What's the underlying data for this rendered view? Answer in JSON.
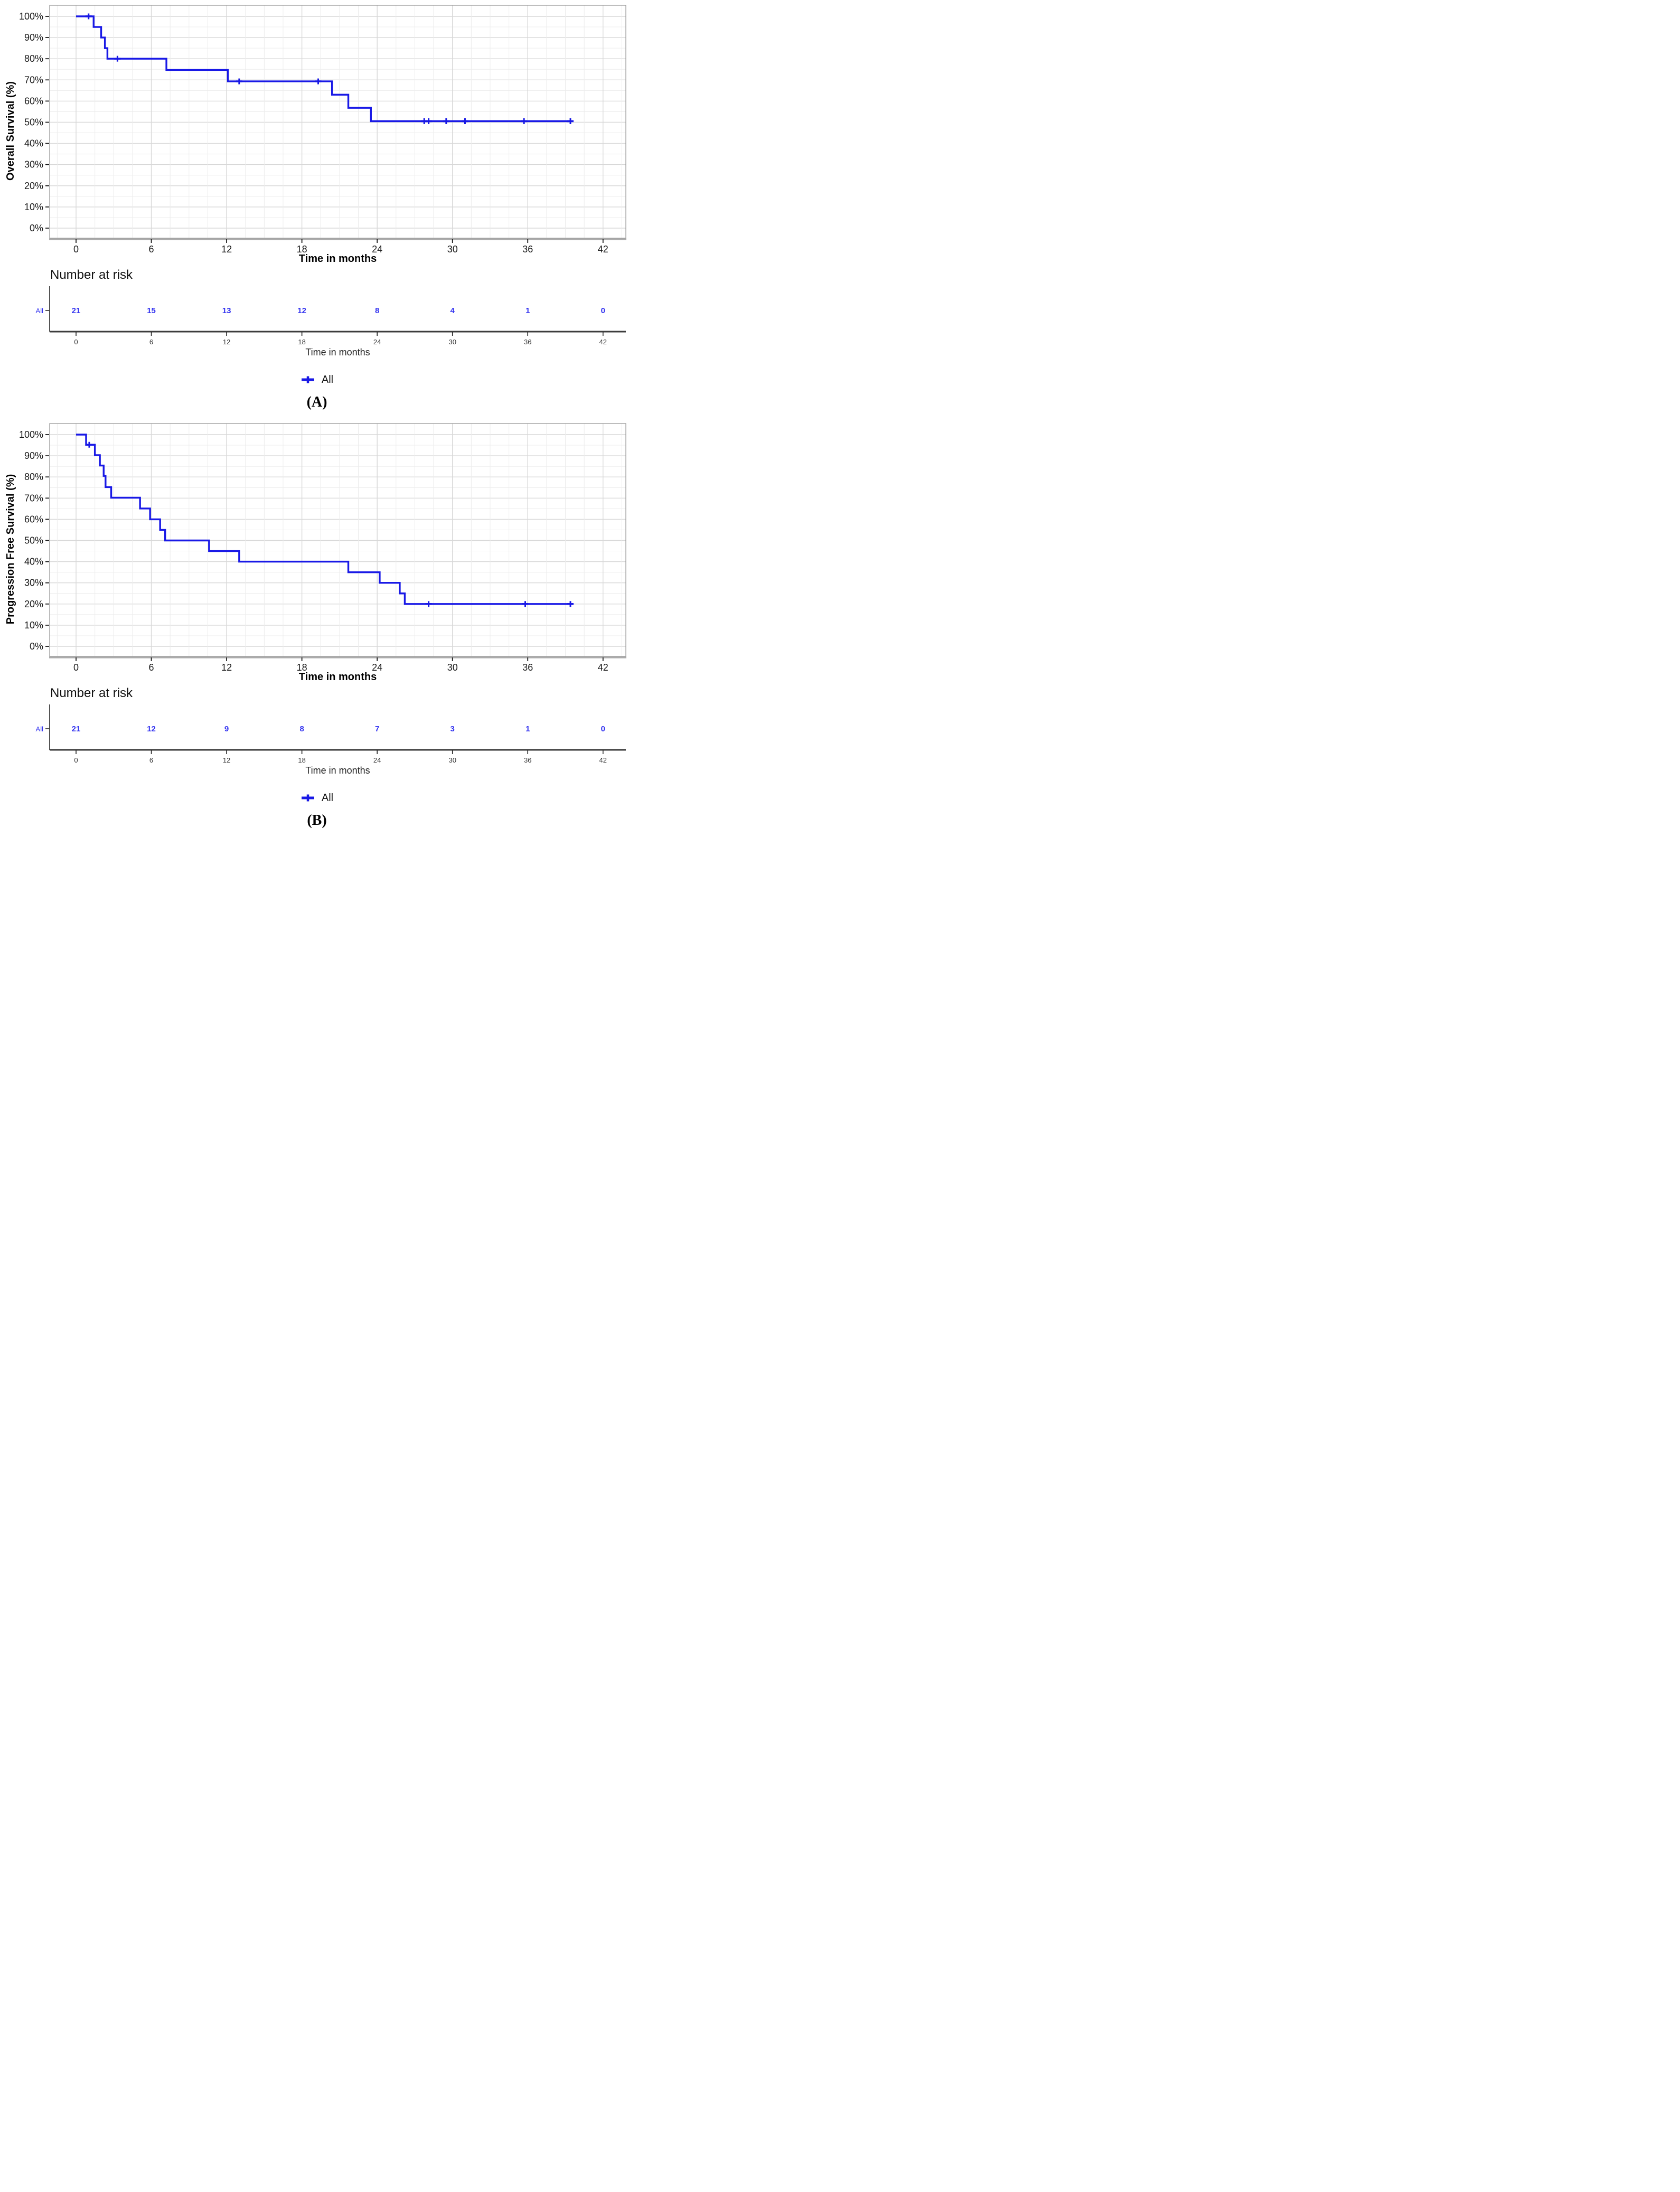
{
  "page": {
    "background": "#ffffff",
    "accent_blue": "#1919e6",
    "risk_number_blue": "#3333f0",
    "grid_major_color": "#d8d8d8",
    "grid_minor_color": "#ececec"
  },
  "chart_data": [
    {
      "type": "line",
      "km_style": "step",
      "panel_label": "(A)",
      "xlabel": "Time in months",
      "ylabel": "Overall Survival (%)",
      "legend_label": "All",
      "legend_marker": "plus",
      "legend_position": "bottom-center",
      "grid": {
        "x_minor_step": 1.5,
        "x_major_step": 6,
        "y_minor_step": 5,
        "y_major_step": 10
      },
      "xlim": [
        0,
        42
      ],
      "ylim": [
        0,
        100
      ],
      "x_ticks": [
        0,
        6,
        12,
        18,
        24,
        30,
        36,
        42
      ],
      "y_ticks_pct": [
        0,
        10,
        20,
        30,
        40,
        50,
        60,
        70,
        80,
        90,
        100
      ],
      "y_tick_labels": [
        "0%",
        "10%",
        "20%",
        "30%",
        "40%",
        "50%",
        "60%",
        "70%",
        "80%",
        "90%",
        "100%"
      ],
      "series": [
        {
          "name": "All",
          "color": "#1919e6",
          "start": [
            0,
            100
          ],
          "steps": [
            [
              1.4,
              95
            ],
            [
              2.0,
              90
            ],
            [
              2.3,
              85
            ],
            [
              2.5,
              80
            ],
            [
              7.2,
              74.7
            ],
            [
              12.1,
              69.3
            ],
            [
              20.4,
              63.0
            ],
            [
              21.7,
              56.8
            ],
            [
              23.5,
              50.5
            ]
          ],
          "end_time": 39.4,
          "censor_times": [
            [
              1.0,
              100
            ],
            [
              3.3,
              80
            ],
            [
              13.0,
              69.3
            ],
            [
              19.3,
              69.3
            ],
            [
              27.75,
              50.5
            ],
            [
              28.1,
              50.5
            ],
            [
              29.5,
              50.5
            ],
            [
              31.0,
              50.5
            ],
            [
              35.7,
              50.5
            ],
            [
              39.4,
              50.5
            ]
          ]
        }
      ],
      "risk_table": {
        "title": "Number at risk",
        "row_label": "All",
        "times": [
          0,
          6,
          12,
          18,
          24,
          30,
          36,
          42
        ],
        "counts": [
          21,
          15,
          13,
          12,
          8,
          4,
          1,
          0
        ],
        "xlabel": "Time in months"
      }
    },
    {
      "type": "line",
      "km_style": "step",
      "panel_label": "(B)",
      "xlabel": "Time in months",
      "ylabel": "Progression Free Survival (%)",
      "legend_label": "All",
      "legend_marker": "plus",
      "legend_position": "bottom-center",
      "grid": {
        "x_minor_step": 1.5,
        "x_major_step": 6,
        "y_minor_step": 5,
        "y_major_step": 10
      },
      "xlim": [
        0,
        42
      ],
      "ylim": [
        0,
        100
      ],
      "x_ticks": [
        0,
        6,
        12,
        18,
        24,
        30,
        36,
        42
      ],
      "y_ticks_pct": [
        0,
        10,
        20,
        30,
        40,
        50,
        60,
        70,
        80,
        90,
        100
      ],
      "y_tick_labels": [
        "0%",
        "10%",
        "20%",
        "30%",
        "40%",
        "50%",
        "60%",
        "70%",
        "80%",
        "90%",
        "100%"
      ],
      "series": [
        {
          "name": "All",
          "color": "#1919e6",
          "start": [
            0,
            100
          ],
          "steps": [
            [
              0.8,
              95.2
            ],
            [
              1.5,
              90.3
            ],
            [
              1.9,
              85.4
            ],
            [
              2.2,
              80.5
            ],
            [
              2.35,
              75.2
            ],
            [
              2.8,
              70.2
            ],
            [
              5.1,
              65.1
            ],
            [
              5.9,
              60.0
            ],
            [
              6.7,
              55.0
            ],
            [
              7.1,
              50.0
            ],
            [
              10.6,
              45.0
            ],
            [
              13.0,
              40.0
            ],
            [
              21.7,
              35.0
            ],
            [
              24.2,
              30.0
            ],
            [
              25.8,
              25.0
            ],
            [
              26.2,
              20.0
            ]
          ],
          "end_time": 39.5,
          "censor_times": [
            [
              1.05,
              95.2
            ],
            [
              28.1,
              20.0
            ],
            [
              35.8,
              20.0
            ],
            [
              39.4,
              20.0
            ]
          ]
        }
      ],
      "risk_table": {
        "title": "Number at risk",
        "row_label": "All",
        "times": [
          0,
          6,
          12,
          18,
          24,
          30,
          36,
          42
        ],
        "counts": [
          21,
          12,
          9,
          8,
          7,
          3,
          1,
          0
        ],
        "xlabel": "Time in months"
      }
    }
  ]
}
